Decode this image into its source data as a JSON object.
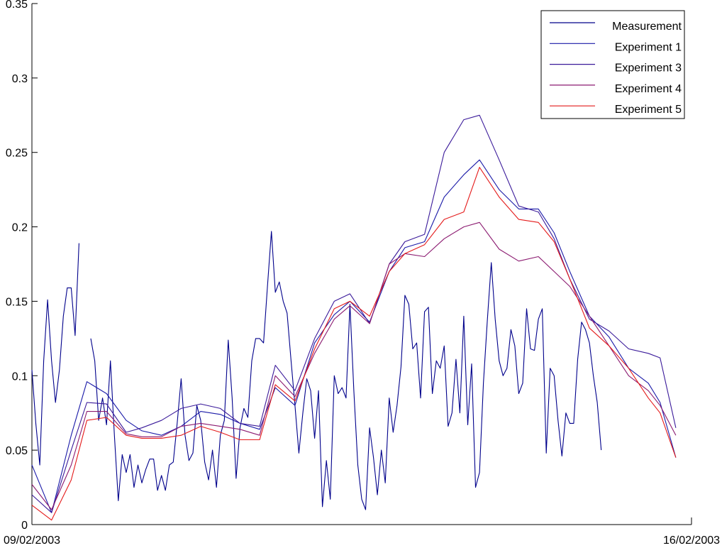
{
  "chart_data": {
    "type": "line",
    "title": "",
    "xlabel": "",
    "ylabel": "",
    "x_tick_labels": [
      "09/02/2003",
      "16/02/2003"
    ],
    "xlim": [
      "09/02/2003",
      "16/02/2003"
    ],
    "ylim": [
      0,
      0.35
    ],
    "y_ticks": [
      "0",
      "0.05",
      "0.1",
      "0.15",
      "0.2",
      "0.25",
      "0.3",
      "0.35"
    ],
    "grid": false,
    "legend_position": "top-right",
    "x_start_date": "09/02/2003",
    "x_step_hours": 1,
    "series": [
      {
        "name": "Measurement",
        "color": "#00008b",
        "segments": [
          {
            "start_index": 0,
            "values": [
              0.104,
              0.068,
              0.04,
              0.11,
              0.151,
              0.11,
              0.082,
              0.104,
              0.14,
              0.159,
              0.159,
              0.127,
              0.189
            ]
          },
          {
            "start_index": 15,
            "values": [
              0.125,
              0.11,
              0.07,
              0.085,
              0.067,
              0.11,
              0.06,
              0.016,
              0.047,
              0.035,
              0.047,
              0.025,
              0.04,
              0.028,
              0.037,
              0.044,
              0.044,
              0.023,
              0.033,
              0.023,
              0.04,
              0.042,
              0.068,
              0.098,
              0.06,
              0.043,
              0.048,
              0.08,
              0.07,
              0.042,
              0.03,
              0.05,
              0.025,
              0.06,
              0.07,
              0.124,
              0.085,
              0.031,
              0.065,
              0.078,
              0.072,
              0.11,
              0.125,
              0.125,
              0.122,
              0.16,
              0.197,
              0.156,
              0.163,
              0.15,
              0.142,
              0.11,
              0.08,
              0.048,
              0.075,
              0.098,
              0.09,
              0.058,
              0.09,
              0.012,
              0.043,
              0.017,
              0.1,
              0.088,
              0.092,
              0.085,
              0.148,
              0.09,
              0.04,
              0.017,
              0.01,
              0.065,
              0.045,
              0.02,
              0.05,
              0.028,
              0.085,
              0.062,
              0.08,
              0.106,
              0.154,
              0.148,
              0.118,
              0.122,
              0.085,
              0.143,
              0.146,
              0.088,
              0.11,
              0.105,
              0.12,
              0.066,
              0.075,
              0.111,
              0.075,
              0.14,
              0.067,
              0.108,
              0.025,
              0.035,
              0.095,
              0.137,
              0.176,
              0.138,
              0.11,
              0.1,
              0.105,
              0.131,
              0.12,
              0.088,
              0.095,
              0.145,
              0.118,
              0.117,
              0.138,
              0.145,
              0.048,
              0.105,
              0.1,
              0.07,
              0.046,
              0.075,
              0.068,
              0.068,
              0.111,
              0.136,
              0.131,
              0.122,
              0.1,
              0.082,
              0.05
            ]
          }
        ]
      },
      {
        "name": "Experiment 1",
        "color": "#1a1aa8",
        "x_indices": [
          0,
          5,
          10,
          14,
          19,
          24,
          28,
          33,
          38,
          43,
          48,
          53,
          58,
          62,
          67,
          72,
          77,
          81,
          86,
          91,
          95,
          100,
          105,
          110,
          114,
          119,
          124,
          129,
          133,
          137,
          142,
          147,
          152,
          157,
          160,
          164
        ],
        "values": [
          0.04,
          0.008,
          0.06,
          0.096,
          0.088,
          0.07,
          0.063,
          0.06,
          0.066,
          0.076,
          0.074,
          0.068,
          0.064,
          0.092,
          0.08,
          0.122,
          0.141,
          0.15,
          0.136,
          0.17,
          0.186,
          0.19,
          0.22,
          0.235,
          0.245,
          0.225,
          0.212,
          0.212,
          0.196,
          0.17,
          0.14,
          0.126,
          0.105,
          0.095,
          0.082,
          0.045
        ]
      },
      {
        "name": "Experiment 3",
        "color": "#3a1a9a",
        "x_indices": [
          0,
          5,
          10,
          14,
          19,
          24,
          28,
          33,
          38,
          43,
          48,
          53,
          58,
          62,
          67,
          72,
          77,
          81,
          86,
          91,
          95,
          100,
          105,
          110,
          114,
          119,
          124,
          129,
          133,
          137,
          142,
          147,
          152,
          157,
          160,
          164
        ],
        "values": [
          0.02,
          0.008,
          0.05,
          0.082,
          0.081,
          0.062,
          0.065,
          0.07,
          0.078,
          0.081,
          0.078,
          0.068,
          0.066,
          0.107,
          0.09,
          0.125,
          0.15,
          0.155,
          0.135,
          0.175,
          0.19,
          0.195,
          0.25,
          0.272,
          0.275,
          0.245,
          0.214,
          0.21,
          0.192,
          0.165,
          0.138,
          0.13,
          0.118,
          0.115,
          0.112,
          0.065
        ]
      },
      {
        "name": "Experiment 4",
        "color": "#8b1a70",
        "x_indices": [
          0,
          5,
          10,
          14,
          19,
          24,
          28,
          33,
          38,
          43,
          48,
          53,
          58,
          62,
          67,
          72,
          77,
          81,
          86,
          91,
          95,
          100,
          105,
          110,
          114,
          119,
          124,
          129,
          133,
          137,
          142,
          147,
          152,
          157,
          160,
          164
        ],
        "values": [
          0.027,
          0.01,
          0.04,
          0.076,
          0.076,
          0.061,
          0.059,
          0.059,
          0.066,
          0.068,
          0.066,
          0.064,
          0.06,
          0.1,
          0.086,
          0.115,
          0.138,
          0.147,
          0.135,
          0.175,
          0.182,
          0.18,
          0.192,
          0.2,
          0.203,
          0.185,
          0.177,
          0.18,
          0.17,
          0.16,
          0.14,
          0.12,
          0.1,
          0.09,
          0.08,
          0.06
        ]
      },
      {
        "name": "Experiment 5",
        "color": "#e41a1a",
        "x_indices": [
          0,
          5,
          10,
          14,
          19,
          24,
          28,
          33,
          38,
          43,
          48,
          53,
          58,
          62,
          67,
          72,
          77,
          81,
          86,
          91,
          95,
          100,
          105,
          110,
          114,
          119,
          124,
          129,
          133,
          137,
          142,
          147,
          152,
          157,
          160,
          164
        ],
        "values": [
          0.013,
          0.003,
          0.03,
          0.07,
          0.072,
          0.06,
          0.058,
          0.058,
          0.06,
          0.066,
          0.062,
          0.057,
          0.057,
          0.094,
          0.083,
          0.118,
          0.145,
          0.15,
          0.14,
          0.17,
          0.182,
          0.188,
          0.205,
          0.21,
          0.24,
          0.22,
          0.205,
          0.203,
          0.19,
          0.165,
          0.132,
          0.12,
          0.105,
          0.085,
          0.075,
          0.045
        ]
      }
    ],
    "legend": {
      "items": [
        {
          "label": "Measurement",
          "color": "#00008b"
        },
        {
          "label": "Experiment 1",
          "color": "#1a1aa8"
        },
        {
          "label": "Experiment 3",
          "color": "#3a1a9a"
        },
        {
          "label": "Experiment 4",
          "color": "#8b1a70"
        },
        {
          "label": "Experiment 5",
          "color": "#e41a1a"
        }
      ]
    }
  }
}
